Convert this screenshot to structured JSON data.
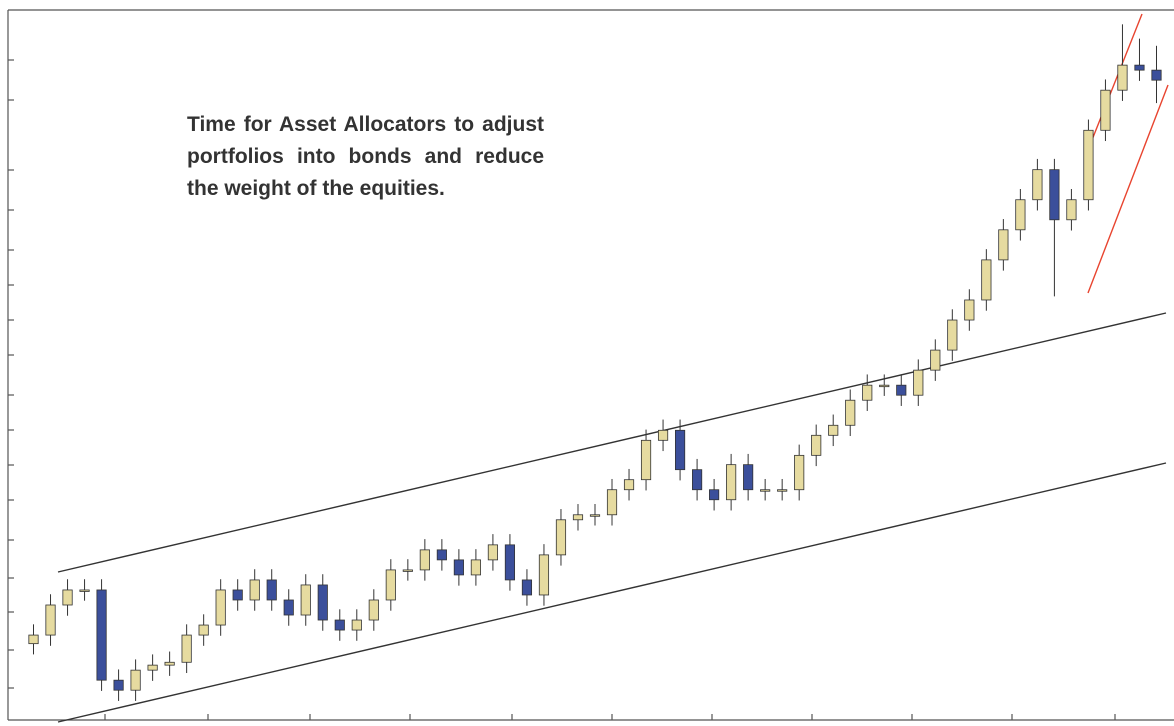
{
  "chart_data": {
    "type": "candlestick",
    "annotation": "Time for Asset Allocators to adjust portfolios into bonds and reduce the weight of the equities.",
    "ylim": [
      0,
      100
    ],
    "up_color": "#e6dba0",
    "down_color": "#3b4f9b",
    "open": [
      11.5,
      12.7,
      16.9,
      19.0,
      19.0,
      6.4,
      5.0,
      7.8,
      8.5,
      8.9,
      12.7,
      14.1,
      19.0,
      17.6,
      20.4,
      17.6,
      15.5,
      19.7,
      14.8,
      13.4,
      14.8,
      17.6,
      21.8,
      21.8,
      24.6,
      23.2,
      21.1,
      23.2,
      25.3,
      20.4,
      18.3,
      23.9,
      28.8,
      29.5,
      29.5,
      33.0,
      34.4,
      39.9,
      41.3,
      35.8,
      33.0,
      31.6,
      36.5,
      33.0,
      33.0,
      33.0,
      37.8,
      40.6,
      42.0,
      45.5,
      47.6,
      47.6,
      46.2,
      49.7,
      52.5,
      56.7,
      59.5,
      65.1,
      69.3,
      73.5,
      77.7,
      70.7,
      73.5,
      83.2,
      88.8,
      92.3,
      91.6
    ],
    "close": [
      12.7,
      16.9,
      19.0,
      19.0,
      6.4,
      5.0,
      7.8,
      8.5,
      8.9,
      12.7,
      14.1,
      19.0,
      17.6,
      20.4,
      17.6,
      15.5,
      19.7,
      14.8,
      13.4,
      14.8,
      17.6,
      21.8,
      21.8,
      24.6,
      23.2,
      21.1,
      23.2,
      25.3,
      20.4,
      18.3,
      23.9,
      28.8,
      29.5,
      29.5,
      33.0,
      34.4,
      39.9,
      41.3,
      35.8,
      33.0,
      31.6,
      36.5,
      33.0,
      33.0,
      33.0,
      37.8,
      40.6,
      42.0,
      45.5,
      47.6,
      47.6,
      46.2,
      49.7,
      52.5,
      56.7,
      59.5,
      65.1,
      69.3,
      73.5,
      77.7,
      70.7,
      73.5,
      83.2,
      88.8,
      92.3,
      91.6,
      90.2
    ],
    "high": [
      14.2,
      18.4,
      20.5,
      20.5,
      20.5,
      7.9,
      9.3,
      10.0,
      10.4,
      14.2,
      15.6,
      20.5,
      20.5,
      21.9,
      21.9,
      19.1,
      21.2,
      21.2,
      16.3,
      16.3,
      19.1,
      23.3,
      23.3,
      26.1,
      26.1,
      24.7,
      24.7,
      26.8,
      26.8,
      21.9,
      25.4,
      30.3,
      31.0,
      31.0,
      34.5,
      35.9,
      41.4,
      42.8,
      42.8,
      37.3,
      34.5,
      38.0,
      38.0,
      34.5,
      34.5,
      39.3,
      42.1,
      43.5,
      47.0,
      49.1,
      49.1,
      49.1,
      51.2,
      54.0,
      58.2,
      61.0,
      66.6,
      70.8,
      75.0,
      79.2,
      79.2,
      75.0,
      84.7,
      90.3,
      98.0,
      96.0,
      95.0
    ],
    "low": [
      10.0,
      11.2,
      15.4,
      17.5,
      4.9,
      3.5,
      3.5,
      6.3,
      7.0,
      7.4,
      11.2,
      12.6,
      16.1,
      16.1,
      16.1,
      14.0,
      14.0,
      13.3,
      11.9,
      11.9,
      13.3,
      16.1,
      20.3,
      20.3,
      21.7,
      19.6,
      19.6,
      21.7,
      18.9,
      16.8,
      16.8,
      22.4,
      27.3,
      28.0,
      28.0,
      31.5,
      32.9,
      38.4,
      34.3,
      31.5,
      30.1,
      30.1,
      31.5,
      31.5,
      31.5,
      31.5,
      36.3,
      39.1,
      40.5,
      44.0,
      46.1,
      44.7,
      44.7,
      48.2,
      51.0,
      55.2,
      58.0,
      63.6,
      67.8,
      72.0,
      60.0,
      69.2,
      72.0,
      81.7,
      87.3,
      90.1,
      87.0
    ]
  }
}
